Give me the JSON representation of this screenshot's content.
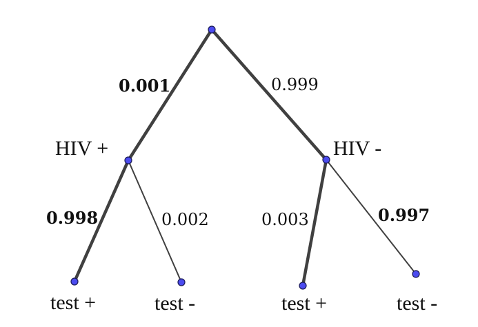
{
  "colors": {
    "node_fill": "#4b4bef",
    "node_stroke": "#1a1a55",
    "edge": "#404040"
  },
  "nodes": {
    "root": "",
    "hiv_pos": "HIV +",
    "hiv_neg": "HIV -",
    "pos_test_pos": "test +",
    "pos_test_neg": "test -",
    "neg_test_pos": "test +",
    "neg_test_neg": "test -"
  },
  "edges": {
    "root_to_hiv_pos": {
      "prob": "0.001",
      "bold": true
    },
    "root_to_hiv_neg": {
      "prob": "0.999",
      "bold": false
    },
    "hiv_pos_to_test_pos": {
      "prob": "0.998",
      "bold": true
    },
    "hiv_pos_to_test_neg": {
      "prob": "0.002",
      "bold": false
    },
    "hiv_neg_to_test_pos": {
      "prob": "0.003",
      "bold": false
    },
    "hiv_neg_to_test_neg": {
      "prob": "0.997",
      "bold": true
    }
  }
}
